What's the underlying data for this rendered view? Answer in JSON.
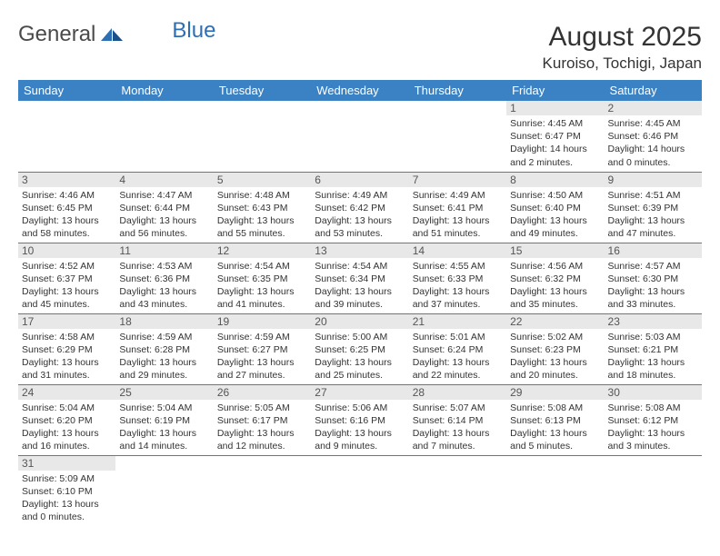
{
  "logo": {
    "part1": "General",
    "part2": "Blue"
  },
  "title": "August 2025",
  "location": "Kuroiso, Tochigi, Japan",
  "colors": {
    "header_bg": "#3b82c4",
    "header_text": "#ffffff",
    "daynum_bg": "#e8e8e8",
    "row_border": "#3b82c4",
    "logo_accent": "#2d6fb5",
    "text": "#333333",
    "background": "#ffffff"
  },
  "typography": {
    "title_fontsize": 30,
    "location_fontsize": 17,
    "weekday_fontsize": 13,
    "daynum_fontsize": 12,
    "info_fontsize": 10.5
  },
  "weekdays": [
    "Sunday",
    "Monday",
    "Tuesday",
    "Wednesday",
    "Thursday",
    "Friday",
    "Saturday"
  ],
  "weeks": [
    [
      null,
      null,
      null,
      null,
      null,
      {
        "day": "1",
        "sunrise": "Sunrise: 4:45 AM",
        "sunset": "Sunset: 6:47 PM",
        "daylight": "Daylight: 14 hours and 2 minutes."
      },
      {
        "day": "2",
        "sunrise": "Sunrise: 4:45 AM",
        "sunset": "Sunset: 6:46 PM",
        "daylight": "Daylight: 14 hours and 0 minutes."
      }
    ],
    [
      {
        "day": "3",
        "sunrise": "Sunrise: 4:46 AM",
        "sunset": "Sunset: 6:45 PM",
        "daylight": "Daylight: 13 hours and 58 minutes."
      },
      {
        "day": "4",
        "sunrise": "Sunrise: 4:47 AM",
        "sunset": "Sunset: 6:44 PM",
        "daylight": "Daylight: 13 hours and 56 minutes."
      },
      {
        "day": "5",
        "sunrise": "Sunrise: 4:48 AM",
        "sunset": "Sunset: 6:43 PM",
        "daylight": "Daylight: 13 hours and 55 minutes."
      },
      {
        "day": "6",
        "sunrise": "Sunrise: 4:49 AM",
        "sunset": "Sunset: 6:42 PM",
        "daylight": "Daylight: 13 hours and 53 minutes."
      },
      {
        "day": "7",
        "sunrise": "Sunrise: 4:49 AM",
        "sunset": "Sunset: 6:41 PM",
        "daylight": "Daylight: 13 hours and 51 minutes."
      },
      {
        "day": "8",
        "sunrise": "Sunrise: 4:50 AM",
        "sunset": "Sunset: 6:40 PM",
        "daylight": "Daylight: 13 hours and 49 minutes."
      },
      {
        "day": "9",
        "sunrise": "Sunrise: 4:51 AM",
        "sunset": "Sunset: 6:39 PM",
        "daylight": "Daylight: 13 hours and 47 minutes."
      }
    ],
    [
      {
        "day": "10",
        "sunrise": "Sunrise: 4:52 AM",
        "sunset": "Sunset: 6:37 PM",
        "daylight": "Daylight: 13 hours and 45 minutes."
      },
      {
        "day": "11",
        "sunrise": "Sunrise: 4:53 AM",
        "sunset": "Sunset: 6:36 PM",
        "daylight": "Daylight: 13 hours and 43 minutes."
      },
      {
        "day": "12",
        "sunrise": "Sunrise: 4:54 AM",
        "sunset": "Sunset: 6:35 PM",
        "daylight": "Daylight: 13 hours and 41 minutes."
      },
      {
        "day": "13",
        "sunrise": "Sunrise: 4:54 AM",
        "sunset": "Sunset: 6:34 PM",
        "daylight": "Daylight: 13 hours and 39 minutes."
      },
      {
        "day": "14",
        "sunrise": "Sunrise: 4:55 AM",
        "sunset": "Sunset: 6:33 PM",
        "daylight": "Daylight: 13 hours and 37 minutes."
      },
      {
        "day": "15",
        "sunrise": "Sunrise: 4:56 AM",
        "sunset": "Sunset: 6:32 PM",
        "daylight": "Daylight: 13 hours and 35 minutes."
      },
      {
        "day": "16",
        "sunrise": "Sunrise: 4:57 AM",
        "sunset": "Sunset: 6:30 PM",
        "daylight": "Daylight: 13 hours and 33 minutes."
      }
    ],
    [
      {
        "day": "17",
        "sunrise": "Sunrise: 4:58 AM",
        "sunset": "Sunset: 6:29 PM",
        "daylight": "Daylight: 13 hours and 31 minutes."
      },
      {
        "day": "18",
        "sunrise": "Sunrise: 4:59 AM",
        "sunset": "Sunset: 6:28 PM",
        "daylight": "Daylight: 13 hours and 29 minutes."
      },
      {
        "day": "19",
        "sunrise": "Sunrise: 4:59 AM",
        "sunset": "Sunset: 6:27 PM",
        "daylight": "Daylight: 13 hours and 27 minutes."
      },
      {
        "day": "20",
        "sunrise": "Sunrise: 5:00 AM",
        "sunset": "Sunset: 6:25 PM",
        "daylight": "Daylight: 13 hours and 25 minutes."
      },
      {
        "day": "21",
        "sunrise": "Sunrise: 5:01 AM",
        "sunset": "Sunset: 6:24 PM",
        "daylight": "Daylight: 13 hours and 22 minutes."
      },
      {
        "day": "22",
        "sunrise": "Sunrise: 5:02 AM",
        "sunset": "Sunset: 6:23 PM",
        "daylight": "Daylight: 13 hours and 20 minutes."
      },
      {
        "day": "23",
        "sunrise": "Sunrise: 5:03 AM",
        "sunset": "Sunset: 6:21 PM",
        "daylight": "Daylight: 13 hours and 18 minutes."
      }
    ],
    [
      {
        "day": "24",
        "sunrise": "Sunrise: 5:04 AM",
        "sunset": "Sunset: 6:20 PM",
        "daylight": "Daylight: 13 hours and 16 minutes."
      },
      {
        "day": "25",
        "sunrise": "Sunrise: 5:04 AM",
        "sunset": "Sunset: 6:19 PM",
        "daylight": "Daylight: 13 hours and 14 minutes."
      },
      {
        "day": "26",
        "sunrise": "Sunrise: 5:05 AM",
        "sunset": "Sunset: 6:17 PM",
        "daylight": "Daylight: 13 hours and 12 minutes."
      },
      {
        "day": "27",
        "sunrise": "Sunrise: 5:06 AM",
        "sunset": "Sunset: 6:16 PM",
        "daylight": "Daylight: 13 hours and 9 minutes."
      },
      {
        "day": "28",
        "sunrise": "Sunrise: 5:07 AM",
        "sunset": "Sunset: 6:14 PM",
        "daylight": "Daylight: 13 hours and 7 minutes."
      },
      {
        "day": "29",
        "sunrise": "Sunrise: 5:08 AM",
        "sunset": "Sunset: 6:13 PM",
        "daylight": "Daylight: 13 hours and 5 minutes."
      },
      {
        "day": "30",
        "sunrise": "Sunrise: 5:08 AM",
        "sunset": "Sunset: 6:12 PM",
        "daylight": "Daylight: 13 hours and 3 minutes."
      }
    ],
    [
      {
        "day": "31",
        "sunrise": "Sunrise: 5:09 AM",
        "sunset": "Sunset: 6:10 PM",
        "daylight": "Daylight: 13 hours and 0 minutes."
      },
      null,
      null,
      null,
      null,
      null,
      null
    ]
  ]
}
